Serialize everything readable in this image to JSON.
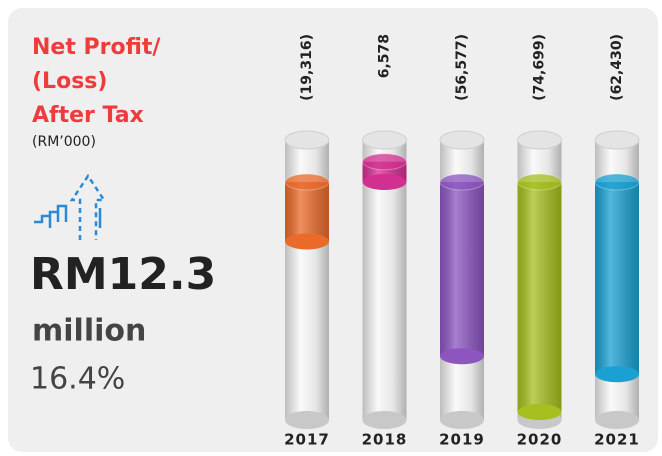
{
  "chart_data": {
    "type": "bar",
    "title": [
      "Net Profit/",
      "(Loss)",
      "After Tax"
    ],
    "subtitle": "(RM’000)",
    "highlight": {
      "amount": "RM12.3",
      "unit": "million",
      "change": "16.4%"
    },
    "categories": [
      "2017",
      "2018",
      "2019",
      "2020",
      "2021"
    ],
    "values": [
      -19316,
      6578,
      -56577,
      -74699,
      -62430
    ],
    "value_labels": [
      "(19,316)",
      "6,578",
      "(56,577)",
      "(74,699)",
      "(62,430)"
    ],
    "colors": [
      "#ea6a2a",
      "#d32f91",
      "#8c55c0",
      "#a6bf1e",
      "#1aa0d2"
    ]
  }
}
